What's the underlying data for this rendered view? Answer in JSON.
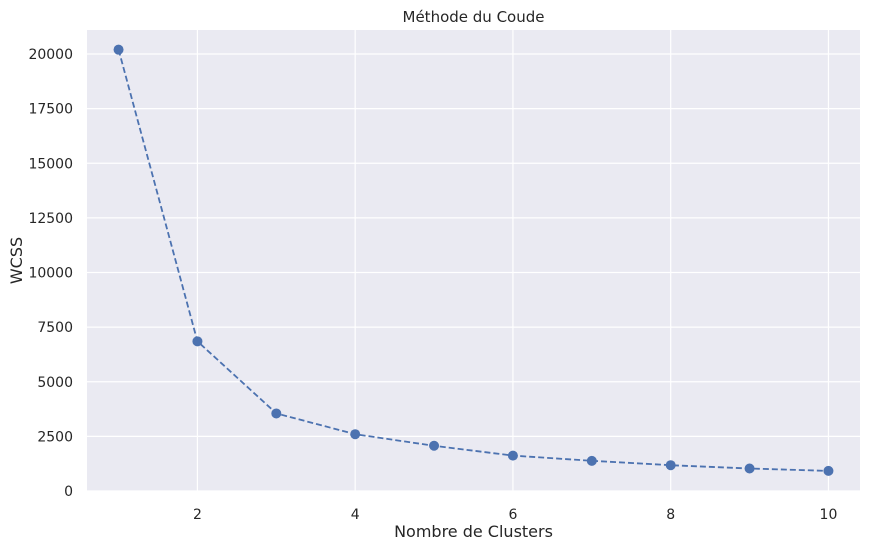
{
  "chart_data": {
    "type": "line",
    "title": "Méthode du Coude",
    "xlabel": "Nombre de Clusters",
    "ylabel": "WCSS",
    "x": [
      1,
      2,
      3,
      4,
      5,
      6,
      7,
      8,
      9,
      10
    ],
    "series": [
      {
        "values": [
          20200,
          6850,
          3550,
          2600,
          2070,
          1620,
          1380,
          1180,
          1030,
          920
        ],
        "color": "#4C72B0",
        "line_style": "dashed",
        "marker": "circle"
      }
    ],
    "xlim": [
      0.6,
      10.4
    ],
    "ylim": [
      0,
      21100
    ],
    "xticks": [
      2,
      4,
      6,
      8,
      10
    ],
    "yticks": [
      0,
      2500,
      5000,
      7500,
      10000,
      12500,
      15000,
      17500,
      20000
    ],
    "grid": true,
    "plot_background": "#EAEAF2",
    "grid_color": "#FFFFFF"
  }
}
